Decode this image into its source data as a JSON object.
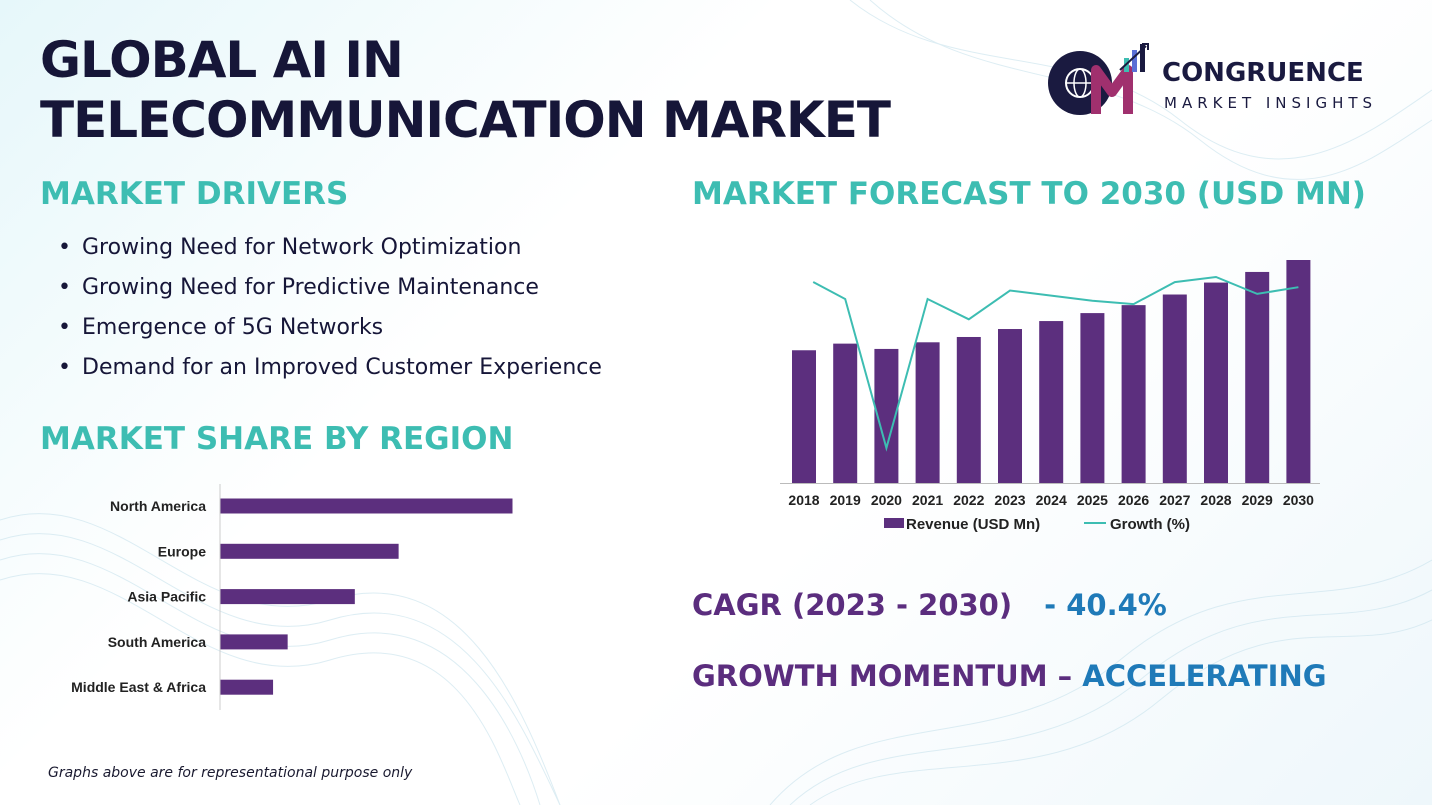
{
  "title": {
    "line1": "GLOBAL AI IN",
    "line2": "TELECOMMUNICATION MARKET"
  },
  "logo": {
    "name": "CONGRUENCE",
    "tagline": "MARKET INSIGHTS",
    "mark": "CM"
  },
  "drivers": {
    "heading": "MARKET DRIVERS",
    "bullet": "•",
    "items": [
      "Growing Need for Network Optimization",
      "Growing Need for Predictive Maintenance",
      "Emergence of 5G Networks",
      "Demand for an Improved Customer Experience"
    ]
  },
  "region": {
    "heading": "MARKET SHARE BY REGION"
  },
  "forecast": {
    "heading": "MARKET FORECAST TO 2030 (USD MN)"
  },
  "cagr": {
    "label": "CAGR (2023 - 2030)",
    "value": "- 40.4%"
  },
  "momentum": {
    "label": "GROWTH MOMENTUM –",
    "value": " ACCELERATING"
  },
  "footnote": "Graphs above are for representational purpose only",
  "colors": {
    "accent": "#3dbdb2",
    "bar": "#5c2f7e",
    "title": "#161638",
    "highlight": "#1f7ab8",
    "line": "#3dbdb2"
  },
  "chart_data": [
    {
      "type": "bar",
      "orientation": "horizontal",
      "categories": [
        "North America",
        "Europe",
        "Asia Pacific",
        "South America",
        "Middle East & Africa"
      ],
      "values": [
        100,
        61,
        46,
        23,
        18
      ],
      "xlim": [
        0,
        100
      ],
      "grid": false,
      "legend": "none"
    },
    {
      "type": "bar",
      "categories": [
        "2018",
        "2019",
        "2020",
        "2021",
        "2022",
        "2023",
        "2024",
        "2025",
        "2026",
        "2027",
        "2028",
        "2029",
        "2030"
      ],
      "series": [
        {
          "name": "Revenue (USD Mn)",
          "type": "bar",
          "values": [
            100,
            105,
            101,
            106,
            110,
            116,
            122,
            128,
            134,
            142,
            151,
            159,
            168
          ]
        },
        {
          "name": "Growth (%)",
          "type": "line",
          "values": [
            null,
            5.0,
            -3.8,
            5.0,
            3.8,
            5.5,
            5.2,
            4.9,
            4.7,
            6.0,
            6.3,
            5.3,
            5.7
          ]
        }
      ],
      "ylim_bars": [
        0,
        168
      ],
      "ylim_line": [
        -3.8,
        6.3
      ],
      "grid": false,
      "legend": "bottom"
    }
  ]
}
